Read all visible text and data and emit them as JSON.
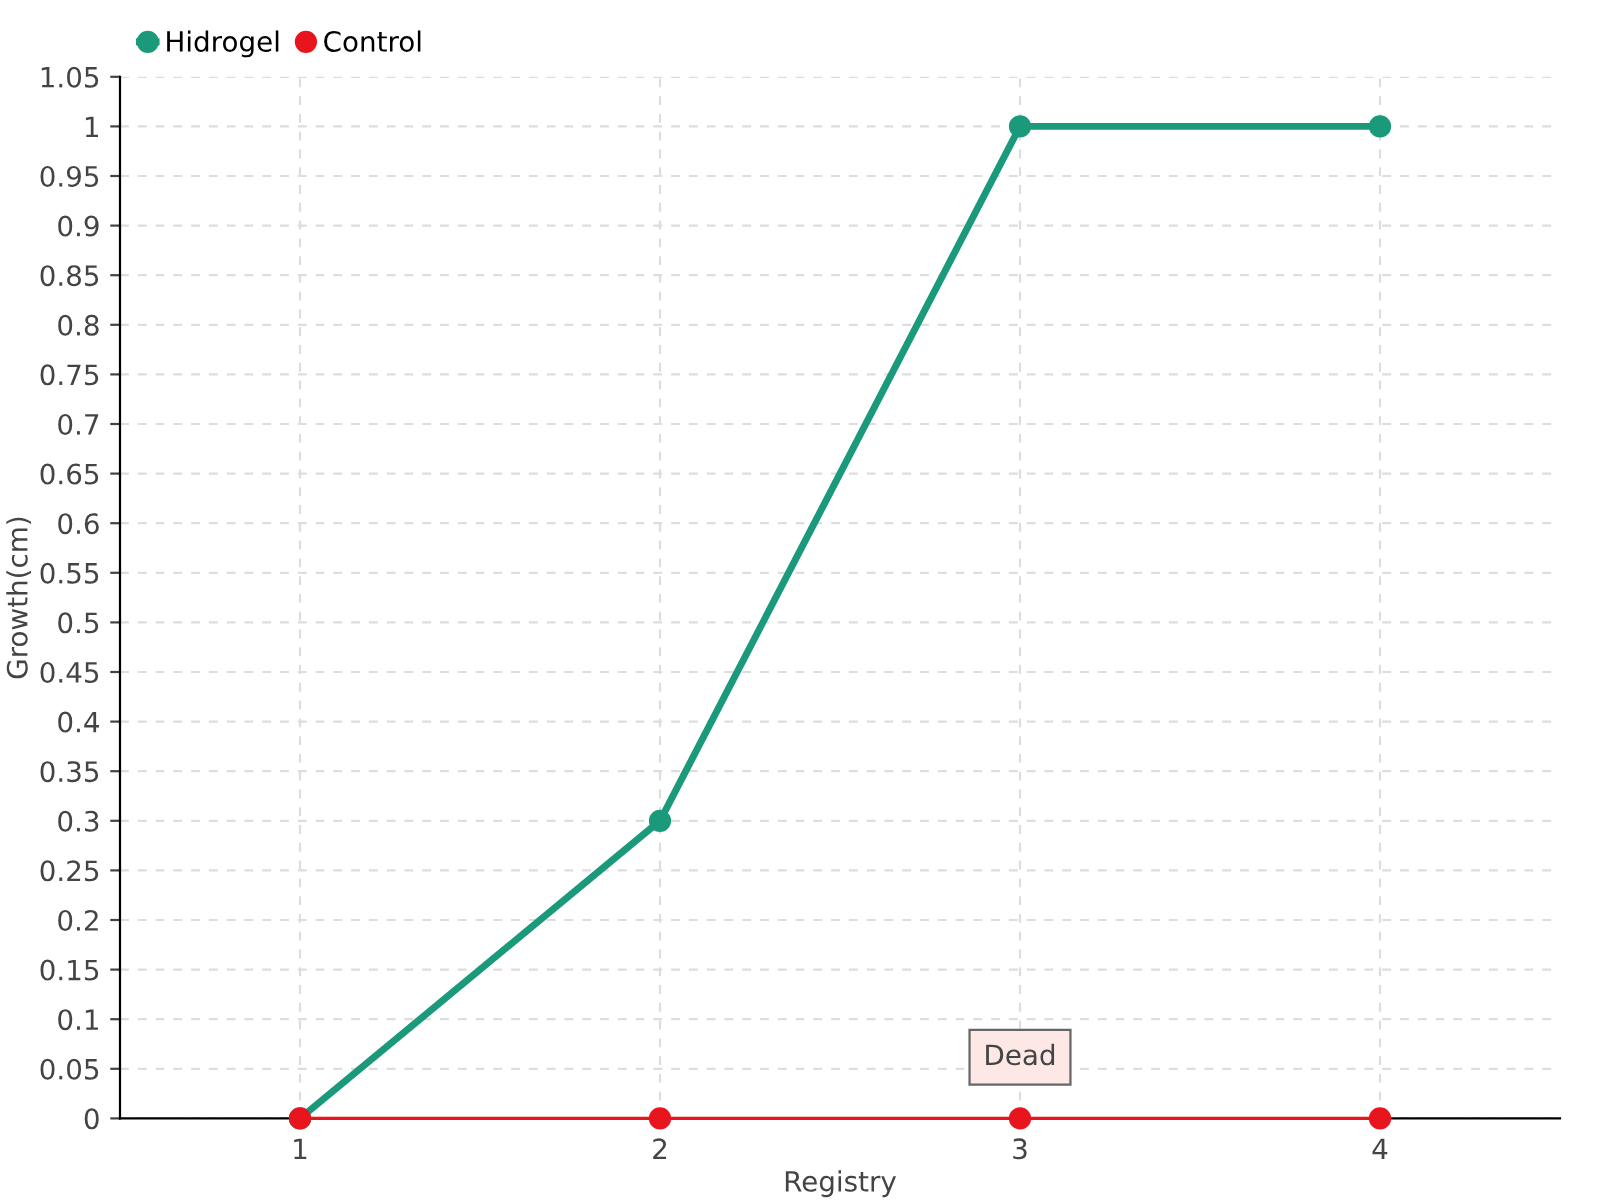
{
  "chart_data": {
    "type": "line",
    "xlabel": "Registry",
    "ylabel": "Growth(cm)",
    "categories": [
      "1",
      "2",
      "3",
      "4"
    ],
    "series": [
      {
        "name": "Hidrogel",
        "color": "#1a9a7a",
        "values": [
          0,
          0.3,
          1,
          1
        ]
      },
      {
        "name": "Control",
        "color": "#e8141e",
        "values": [
          0,
          0,
          0,
          0
        ]
      }
    ],
    "ylim": [
      0,
      1.05
    ],
    "yticks": [
      0,
      0.05,
      0.1,
      0.15,
      0.2,
      0.25,
      0.3,
      0.35,
      0.4,
      0.45,
      0.5,
      0.55,
      0.6,
      0.65,
      0.7,
      0.75,
      0.8,
      0.85,
      0.9,
      0.95,
      1,
      1.05
    ],
    "annotations": [
      {
        "text": "Dead",
        "x": "3",
        "y": 0
      }
    ],
    "grid": true,
    "legend": "top left",
    "marker": "circle",
    "line_style": "solid"
  }
}
